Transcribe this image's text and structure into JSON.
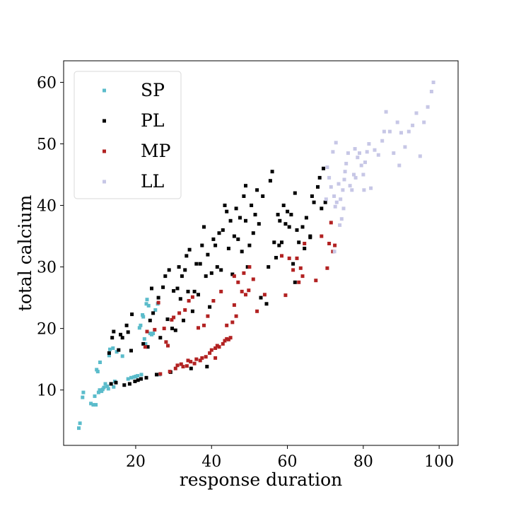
{
  "chart_data": {
    "type": "scatter",
    "title": "",
    "xlabel": "response duration",
    "ylabel": "total calcium",
    "xlim": [
      1,
      105
    ],
    "ylim": [
      1,
      63.5
    ],
    "xticks": [
      20,
      40,
      60,
      80,
      100
    ],
    "yticks": [
      10,
      20,
      30,
      40,
      50,
      60
    ],
    "grid": false,
    "legend": "top-left",
    "series": [
      {
        "name": "SP",
        "color": "#5bbccb",
        "points": [
          [
            5.0,
            3.8
          ],
          [
            5.3,
            4.6
          ],
          [
            6.0,
            8.8
          ],
          [
            6.2,
            9.6
          ],
          [
            8.2,
            7.8
          ],
          [
            8.8,
            7.6
          ],
          [
            9.2,
            9.0
          ],
          [
            9.5,
            7.6
          ],
          [
            9.7,
            13.3
          ],
          [
            10.0,
            13.0
          ],
          [
            10.2,
            9.6
          ],
          [
            10.5,
            10.0
          ],
          [
            10.6,
            14.5
          ],
          [
            11.0,
            9.8
          ],
          [
            11.3,
            10.1
          ],
          [
            11.6,
            10.4
          ],
          [
            12.0,
            11.0
          ],
          [
            12.5,
            10.6
          ],
          [
            12.8,
            10.2
          ],
          [
            13.0,
            15.6
          ],
          [
            13.2,
            16.6
          ],
          [
            13.5,
            11.0
          ],
          [
            14.0,
            16.8
          ],
          [
            14.2,
            10.5
          ],
          [
            14.5,
            11.4
          ],
          [
            15.0,
            16.2
          ],
          [
            16.5,
            15.5
          ],
          [
            18.0,
            11.8
          ],
          [
            18.8,
            12.0
          ],
          [
            19.5,
            12.1
          ],
          [
            20.0,
            12.2
          ],
          [
            20.5,
            12.3
          ],
          [
            21.0,
            20.1
          ],
          [
            21.3,
            20.5
          ],
          [
            21.5,
            12.5
          ],
          [
            21.8,
            22.2
          ],
          [
            22.0,
            21.9
          ],
          [
            22.3,
            18.3
          ],
          [
            22.6,
            17.5
          ],
          [
            22.8,
            24.0
          ],
          [
            23.0,
            24.7
          ],
          [
            23.4,
            23.7
          ],
          [
            23.8,
            19.2
          ],
          [
            24.2,
            19.0
          ],
          [
            24.6,
            19.2
          ],
          [
            25.2,
            23.0
          ],
          [
            25.8,
            24.0
          ],
          [
            26.3,
            12.5
          ]
        ]
      },
      {
        "name": "PL",
        "color": "#000000",
        "points": [
          [
            13.0,
            16.0
          ],
          [
            13.5,
            11.0
          ],
          [
            13.8,
            18.5
          ],
          [
            14.2,
            19.5
          ],
          [
            14.8,
            11.2
          ],
          [
            15.5,
            16.5
          ],
          [
            16.0,
            19.0
          ],
          [
            16.5,
            18.5
          ],
          [
            17.0,
            10.8
          ],
          [
            17.6,
            20.5
          ],
          [
            18.0,
            19.4
          ],
          [
            18.4,
            11.0
          ],
          [
            18.8,
            16.4
          ],
          [
            19.0,
            22.3
          ],
          [
            19.8,
            11.4
          ],
          [
            20.6,
            11.6
          ],
          [
            21.4,
            11.8
          ],
          [
            22.0,
            17.5
          ],
          [
            22.8,
            12.0
          ],
          [
            23.2,
            17.0
          ],
          [
            23.8,
            21.3
          ],
          [
            24.2,
            26.5
          ],
          [
            24.6,
            22.5
          ],
          [
            25.5,
            12.5
          ],
          [
            26.0,
            25.0
          ],
          [
            26.5,
            18.5
          ],
          [
            27.2,
            26.7
          ],
          [
            27.8,
            28.5
          ],
          [
            28.4,
            21.5
          ],
          [
            28.8,
            29.5
          ],
          [
            29.2,
            12.9
          ],
          [
            29.6,
            20.0
          ],
          [
            30.0,
            26.1
          ],
          [
            30.5,
            19.7
          ],
          [
            31.0,
            26.5
          ],
          [
            31.4,
            30.0
          ],
          [
            31.8,
            24.8
          ],
          [
            32.2,
            28.5
          ],
          [
            32.6,
            21.3
          ],
          [
            33.0,
            29.5
          ],
          [
            33.4,
            31.8
          ],
          [
            33.8,
            26.0
          ],
          [
            34.2,
            32.8
          ],
          [
            34.6,
            13.5
          ],
          [
            35.0,
            22.8
          ],
          [
            35.5,
            26.0
          ],
          [
            36.0,
            30.5
          ],
          [
            36.5,
            25.5
          ],
          [
            37.0,
            30.5
          ],
          [
            37.5,
            33.5
          ],
          [
            38.0,
            36.5
          ],
          [
            38.5,
            28.5
          ],
          [
            39.0,
            32.0
          ],
          [
            39.5,
            23.5
          ],
          [
            40.0,
            29.0
          ],
          [
            40.5,
            34.5
          ],
          [
            41.0,
            33.5
          ],
          [
            41.5,
            30.0
          ],
          [
            42.0,
            35.5
          ],
          [
            42.5,
            29.5
          ],
          [
            43.0,
            36.0
          ],
          [
            43.5,
            40.0
          ],
          [
            44.0,
            39.0
          ],
          [
            44.5,
            33.0
          ],
          [
            45.0,
            37.5
          ],
          [
            45.5,
            28.8
          ],
          [
            46.0,
            35.0
          ],
          [
            46.5,
            39.5
          ],
          [
            47.0,
            34.5
          ],
          [
            47.5,
            38.0
          ],
          [
            48.0,
            32.5
          ],
          [
            48.5,
            41.5
          ],
          [
            49.0,
            37.5
          ],
          [
            49.5,
            30.0
          ],
          [
            50.0,
            33.5
          ],
          [
            50.5,
            40.0
          ],
          [
            51.0,
            35.5
          ],
          [
            51.5,
            38.5
          ],
          [
            52.0,
            42.5
          ],
          [
            53.0,
            25.0
          ],
          [
            53.5,
            41.5
          ],
          [
            54.5,
            24.0
          ],
          [
            55.0,
            30.0
          ],
          [
            55.5,
            44.0
          ],
          [
            56.0,
            45.5
          ],
          [
            56.5,
            34.0
          ],
          [
            57.0,
            31.5
          ],
          [
            57.5,
            38.5
          ],
          [
            58.0,
            37.5
          ],
          [
            58.5,
            34.0
          ],
          [
            59.0,
            40.0
          ],
          [
            59.5,
            37.0
          ],
          [
            60.0,
            39.0
          ],
          [
            60.5,
            36.5
          ],
          [
            61.0,
            38.5
          ],
          [
            61.5,
            30.5
          ],
          [
            62.0,
            42.0
          ],
          [
            62.5,
            36.0
          ],
          [
            63.0,
            34.0
          ],
          [
            64.0,
            36.5
          ],
          [
            64.5,
            33.0
          ],
          [
            65.0,
            38.0
          ],
          [
            66.0,
            35.0
          ],
          [
            66.5,
            41.5
          ],
          [
            67.0,
            40.5
          ],
          [
            68.0,
            43.0
          ],
          [
            68.5,
            44.5
          ],
          [
            69.0,
            39.5
          ],
          [
            69.5,
            46.0
          ],
          [
            70.0,
            40.5
          ],
          [
            62.0,
            27.5
          ],
          [
            38.8,
            13.8
          ],
          [
            57.8,
            33.5
          ],
          [
            66.0,
            34.8
          ],
          [
            49.0,
            43.2
          ],
          [
            52.5,
            37.0
          ]
        ]
      },
      {
        "name": "MP",
        "color": "#b22222",
        "points": [
          [
            22.5,
            17.0
          ],
          [
            23.0,
            19.5
          ],
          [
            25.0,
            19.8
          ],
          [
            26.0,
            24.2
          ],
          [
            26.5,
            12.6
          ],
          [
            27.5,
            20.0
          ],
          [
            28.0,
            17.8
          ],
          [
            28.5,
            17.2
          ],
          [
            29.0,
            13.0
          ],
          [
            29.5,
            21.4
          ],
          [
            30.0,
            21.8
          ],
          [
            30.5,
            13.5
          ],
          [
            31.0,
            14.0
          ],
          [
            31.5,
            22.5
          ],
          [
            32.0,
            14.2
          ],
          [
            32.5,
            13.8
          ],
          [
            33.0,
            23.0
          ],
          [
            33.5,
            13.9
          ],
          [
            34.0,
            24.5
          ],
          [
            34.5,
            14.6
          ],
          [
            35.0,
            25.1
          ],
          [
            35.5,
            14.3
          ],
          [
            36.0,
            15.0
          ],
          [
            36.5,
            20.1
          ],
          [
            37.0,
            14.8
          ],
          [
            37.5,
            15.2
          ],
          [
            38.0,
            20.5
          ],
          [
            38.5,
            15.4
          ],
          [
            39.0,
            22.0
          ],
          [
            39.5,
            16.0
          ],
          [
            40.0,
            16.5
          ],
          [
            40.5,
            24.5
          ],
          [
            41.0,
            16.8
          ],
          [
            41.5,
            17.2
          ],
          [
            42.0,
            17.0
          ],
          [
            42.5,
            26.0
          ],
          [
            43.0,
            17.5
          ],
          [
            43.5,
            18.0
          ],
          [
            44.0,
            20.5
          ],
          [
            44.5,
            18.2
          ],
          [
            45.0,
            18.5
          ],
          [
            45.5,
            21.0
          ],
          [
            46.0,
            28.5
          ],
          [
            46.5,
            22.0
          ],
          [
            47.0,
            27.5
          ],
          [
            48.0,
            26.0
          ],
          [
            48.5,
            29.0
          ],
          [
            49.0,
            25.5
          ],
          [
            50.0,
            30.0
          ],
          [
            51.0,
            28.0
          ],
          [
            52.0,
            22.8
          ],
          [
            54.0,
            25.5
          ],
          [
            58.5,
            31.8
          ],
          [
            59.5,
            25.4
          ],
          [
            60.5,
            31.4
          ],
          [
            61.5,
            29.5
          ],
          [
            62.5,
            31.4
          ],
          [
            63.0,
            27.5
          ],
          [
            63.5,
            29.8
          ],
          [
            64.0,
            28.5
          ],
          [
            64.5,
            33.8
          ],
          [
            67.5,
            27.8
          ],
          [
            69.0,
            35.0
          ],
          [
            70.5,
            29.8
          ],
          [
            71.0,
            33.8
          ],
          [
            71.5,
            37.2
          ],
          [
            72.0,
            32.5
          ],
          [
            72.5,
            33.5
          ],
          [
            41.0,
            15.2
          ],
          [
            44.0,
            18.3
          ],
          [
            49.8,
            26.2
          ],
          [
            46.0,
            23.8
          ],
          [
            33.8,
            14.8
          ]
        ]
      },
      {
        "name": "LL",
        "color": "#c7c7e6",
        "points": [
          [
            70.5,
            46.2
          ],
          [
            71.0,
            44.5
          ],
          [
            71.5,
            43.0
          ],
          [
            72.0,
            48.7
          ],
          [
            72.3,
            41.5
          ],
          [
            72.6,
            39.8
          ],
          [
            72.8,
            50.2
          ],
          [
            73.0,
            40.5
          ],
          [
            73.5,
            43.5
          ],
          [
            74.0,
            41.0
          ],
          [
            74.3,
            37.8
          ],
          [
            74.6,
            42.5
          ],
          [
            75.0,
            44.2
          ],
          [
            75.5,
            46.8
          ],
          [
            76.0,
            48.5
          ],
          [
            76.5,
            43.2
          ],
          [
            77.0,
            42.5
          ],
          [
            77.5,
            45.0
          ],
          [
            78.0,
            44.5
          ],
          [
            78.5,
            47.8
          ],
          [
            79.0,
            48.5
          ],
          [
            79.5,
            46.5
          ],
          [
            80.0,
            45.0
          ],
          [
            80.5,
            47.0
          ],
          [
            81.0,
            48.7
          ],
          [
            81.5,
            50.0
          ],
          [
            82.0,
            42.8
          ],
          [
            83.0,
            49.0
          ],
          [
            84.0,
            48.2
          ],
          [
            85.0,
            50.5
          ],
          [
            85.5,
            52.0
          ],
          [
            86.0,
            55.2
          ],
          [
            87.0,
            52.0
          ],
          [
            88.0,
            48.5
          ],
          [
            89.0,
            53.5
          ],
          [
            89.5,
            46.5
          ],
          [
            90.0,
            51.8
          ],
          [
            91.0,
            49.5
          ],
          [
            92.0,
            52.0
          ],
          [
            93.0,
            53.0
          ],
          [
            94.0,
            55.0
          ],
          [
            95.0,
            48.0
          ],
          [
            96.0,
            53.5
          ],
          [
            97.0,
            56.0
          ],
          [
            98.0,
            58.5
          ],
          [
            98.5,
            60.0
          ],
          [
            73.8,
            36.8
          ],
          [
            75.2,
            45.5
          ],
          [
            77.8,
            49.2
          ],
          [
            80.2,
            42.5
          ],
          [
            72.4,
            32.5
          ],
          [
            70.2,
            41.0
          ],
          [
            74.8,
            39.5
          ]
        ]
      }
    ]
  }
}
